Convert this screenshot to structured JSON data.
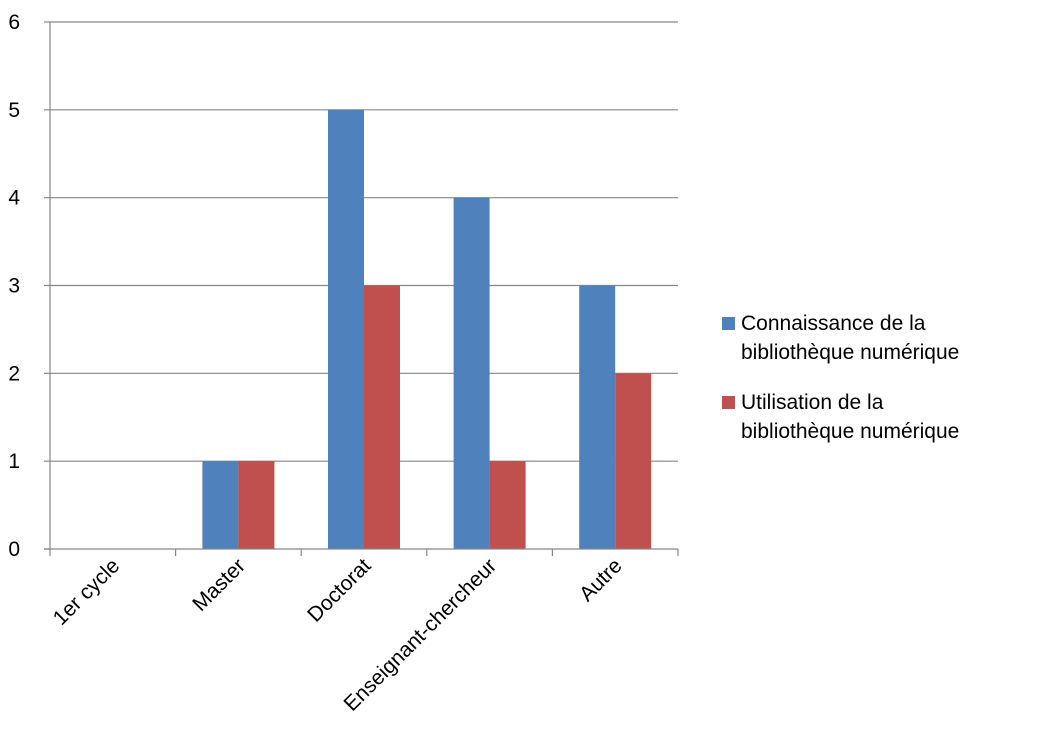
{
  "chart_data": {
    "type": "bar",
    "title": "",
    "xlabel": "",
    "ylabel": "",
    "categories": [
      "1er cycle",
      "Master",
      "Doctorat",
      "Enseignant-chercheur",
      "Autre"
    ],
    "series": [
      {
        "name": "Connaissance de la bibliothèque numérique",
        "values": [
          0,
          1,
          5,
          4,
          3
        ],
        "color": "#4F81BD"
      },
      {
        "name": "Utilisation de la bibliothèque numérique",
        "values": [
          0,
          1,
          3,
          1,
          2
        ],
        "color": "#C0504D"
      }
    ],
    "ylim": [
      0,
      6
    ],
    "yticks": [
      0,
      1,
      2,
      3,
      4,
      5,
      6
    ],
    "grid": true,
    "legend_position": "right"
  }
}
